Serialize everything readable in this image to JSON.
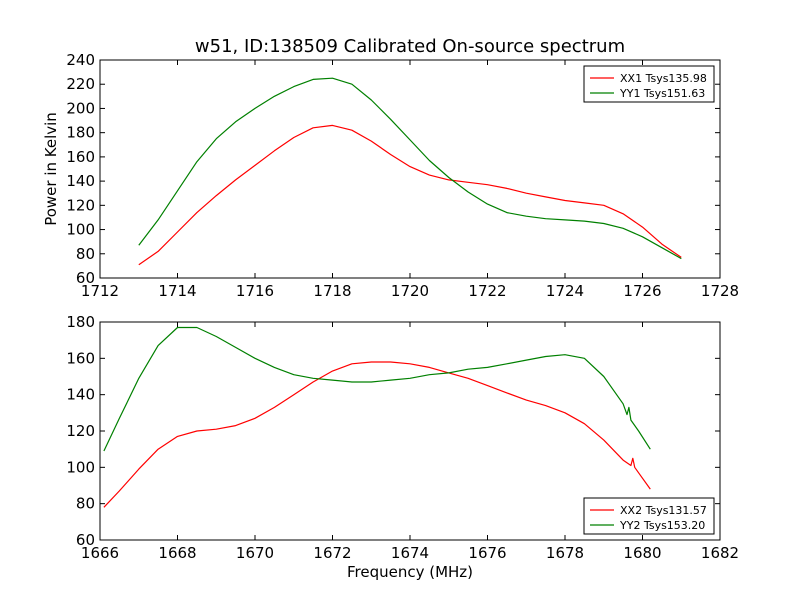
{
  "chart_data": [
    {
      "type": "line",
      "title": "w51, ID:138509 Calibrated On-source spectrum",
      "xlabel": "",
      "ylabel": "Power in Kelvin",
      "xlim": [
        1712,
        1728
      ],
      "ylim": [
        60,
        240
      ],
      "xticks": [
        1712,
        1714,
        1716,
        1718,
        1720,
        1722,
        1724,
        1726,
        1728
      ],
      "yticks": [
        60,
        80,
        100,
        120,
        140,
        160,
        180,
        200,
        220,
        240
      ],
      "grid": false,
      "legend_position": "top-right",
      "series": [
        {
          "name": "XX1 Tsys135.98",
          "color": "#ff0000",
          "x": [
            1713.0,
            1713.5,
            1714.0,
            1714.5,
            1715.0,
            1715.5,
            1716.0,
            1716.5,
            1717.0,
            1717.5,
            1718.0,
            1718.5,
            1719.0,
            1719.5,
            1720.0,
            1720.5,
            1721.0,
            1721.5,
            1722.0,
            1722.5,
            1723.0,
            1723.5,
            1724.0,
            1724.5,
            1725.0,
            1725.5,
            1726.0,
            1726.5,
            1727.0
          ],
          "y": [
            71,
            82,
            98,
            114,
            128,
            141,
            153,
            165,
            176,
            184,
            186,
            182,
            173,
            162,
            152,
            145,
            141,
            139,
            137,
            134,
            130,
            127,
            124,
            122,
            120,
            113,
            102,
            88,
            77
          ]
        },
        {
          "name": "YY1 Tsys151.63",
          "color": "#008000",
          "x": [
            1713.0,
            1713.5,
            1714.0,
            1714.5,
            1715.0,
            1715.5,
            1716.0,
            1716.5,
            1717.0,
            1717.5,
            1718.0,
            1718.5,
            1719.0,
            1719.5,
            1720.0,
            1720.5,
            1721.0,
            1721.5,
            1722.0,
            1722.5,
            1723.0,
            1723.5,
            1724.0,
            1724.5,
            1725.0,
            1725.5,
            1726.0,
            1726.5,
            1727.0
          ],
          "y": [
            87,
            108,
            132,
            156,
            175,
            189,
            200,
            210,
            218,
            224,
            225,
            220,
            207,
            191,
            174,
            157,
            143,
            131,
            121,
            114,
            111,
            109,
            108,
            107,
            105,
            101,
            94,
            85,
            76
          ]
        }
      ]
    },
    {
      "type": "line",
      "title": "",
      "xlabel": "Frequency (MHz)",
      "ylabel": "",
      "xlim": [
        1666,
        1682
      ],
      "ylim": [
        60,
        180
      ],
      "xticks": [
        1666,
        1668,
        1670,
        1672,
        1674,
        1676,
        1678,
        1680,
        1682
      ],
      "yticks": [
        60,
        80,
        100,
        120,
        140,
        160,
        180
      ],
      "grid": false,
      "legend_position": "bottom-right",
      "series": [
        {
          "name": "XX2 Tsys131.57",
          "color": "#ff0000",
          "x": [
            1666.1,
            1666.5,
            1667.0,
            1667.5,
            1668.0,
            1668.5,
            1669.0,
            1669.5,
            1670.0,
            1670.5,
            1671.0,
            1671.5,
            1672.0,
            1672.5,
            1673.0,
            1673.5,
            1674.0,
            1674.5,
            1675.0,
            1675.5,
            1676.0,
            1676.5,
            1677.0,
            1677.5,
            1678.0,
            1678.5,
            1679.0,
            1679.5,
            1679.7,
            1679.75,
            1679.8,
            1679.9,
            1680.2
          ],
          "y": [
            78,
            87,
            99,
            110,
            117,
            120,
            121,
            123,
            127,
            133,
            140,
            147,
            153,
            157,
            158,
            158,
            157,
            155,
            152,
            149,
            145,
            141,
            137,
            134,
            130,
            124,
            115,
            104,
            101,
            105,
            100,
            97,
            88
          ]
        },
        {
          "name": "YY2 Tsys153.20",
          "color": "#008000",
          "x": [
            1666.1,
            1666.5,
            1667.0,
            1667.5,
            1668.0,
            1668.5,
            1669.0,
            1669.5,
            1670.0,
            1670.5,
            1671.0,
            1671.5,
            1672.0,
            1672.5,
            1673.0,
            1673.5,
            1674.0,
            1674.5,
            1675.0,
            1675.5,
            1676.0,
            1676.5,
            1677.0,
            1677.5,
            1678.0,
            1678.5,
            1679.0,
            1679.5,
            1679.6,
            1679.65,
            1679.7,
            1679.9,
            1680.2
          ],
          "y": [
            109,
            127,
            149,
            167,
            177,
            177,
            172,
            166,
            160,
            155,
            151,
            149,
            148,
            147,
            147,
            148,
            149,
            151,
            152,
            154,
            155,
            157,
            159,
            161,
            162,
            160,
            150,
            135,
            129,
            133,
            126,
            120,
            110
          ]
        }
      ]
    }
  ]
}
